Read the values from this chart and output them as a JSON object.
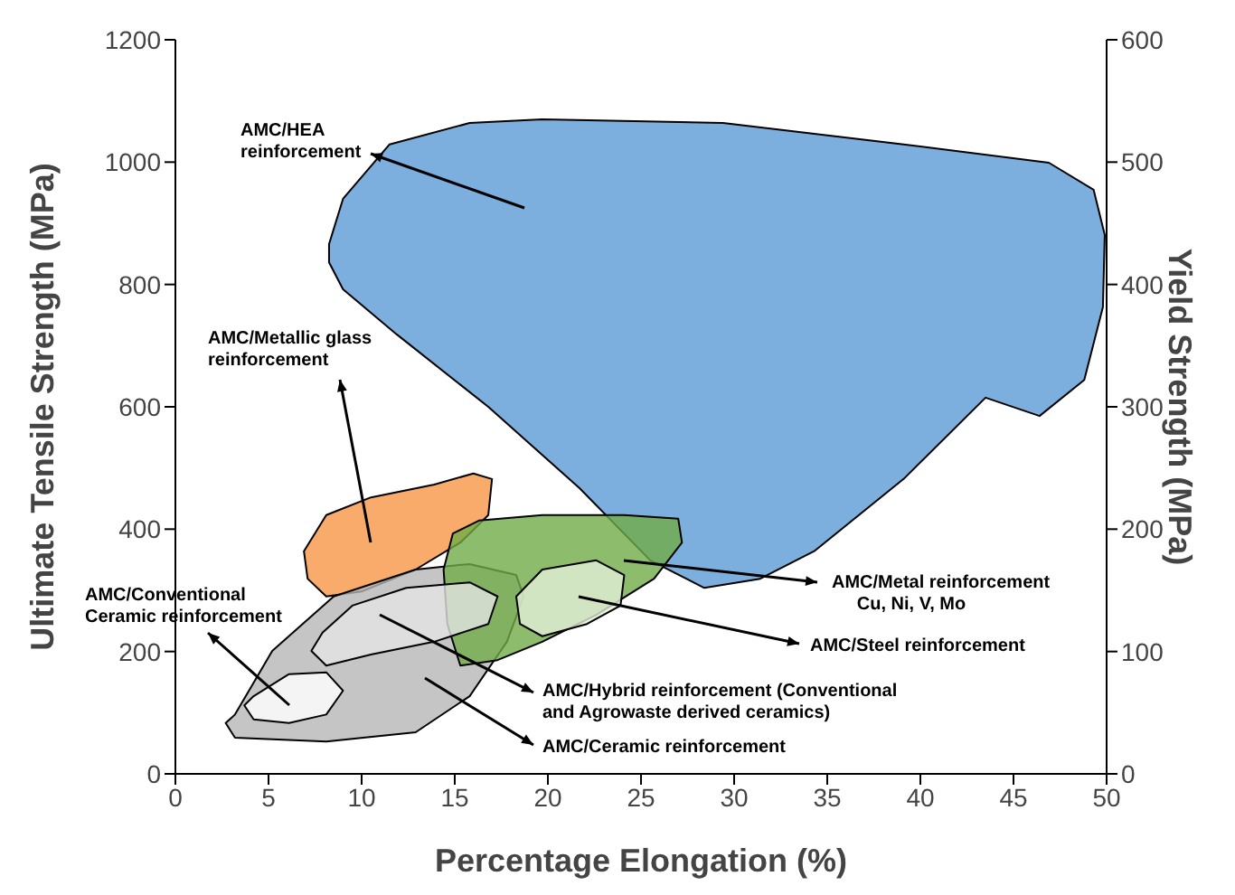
{
  "chart_data": {
    "type": "area",
    "xlabel": "Percentage Elongation (%)",
    "ylabel": "Ultimate Tensile Strength (MPa)",
    "y2label": "Yield Strength (MPa)",
    "xlim": [
      0,
      50
    ],
    "xticks": [
      0,
      5,
      10,
      15,
      20,
      25,
      30,
      35,
      40,
      45,
      50
    ],
    "ylim": [
      0,
      1200
    ],
    "yticks": [
      0,
      200,
      400,
      600,
      800,
      1000,
      1200
    ],
    "y2lim": [
      0,
      600
    ],
    "y2ticks": [
      0,
      100,
      200,
      300,
      400,
      500,
      600
    ],
    "series": [
      {
        "color": "#5b9bd5",
        "x": [
          8.25,
          9.0,
          11.5,
          15.8,
          19.7,
          29.4,
          39.1,
          46.9,
          49.3,
          49.9,
          49.8,
          48.8,
          46.4,
          43.5,
          39.1,
          34.3,
          31.4,
          28.4,
          25.5,
          21.7,
          16.8,
          11.9,
          9.0,
          8.25
        ],
        "values": [
          866,
          940,
          1029,
          1064,
          1070,
          1064,
          1029,
          999,
          955,
          881,
          763,
          644,
          585,
          615,
          482,
          364,
          319,
          304,
          349,
          467,
          600,
          718,
          792,
          836
        ]
      },
      {
        "color": "#f79646",
        "x": [
          6.9,
          8.1,
          10.5,
          13.9,
          16.0,
          17.0,
          16.8,
          15.3,
          12.9,
          10.0,
          8.1,
          7.1
        ],
        "values": [
          364,
          423,
          452,
          473,
          491,
          482,
          423,
          378,
          334,
          298,
          290,
          319
        ]
      },
      {
        "color": "#b7b7b7",
        "x": [
          3.2,
          5.2,
          8.5,
          12.9,
          15.8,
          18.3,
          18.7,
          17.8,
          15.8,
          12.9,
          8.1,
          3.2,
          2.7
        ],
        "values": [
          97,
          201,
          290,
          334,
          343,
          325,
          290,
          216,
          127,
          68,
          53,
          59,
          83
        ]
      },
      {
        "color": "#70ad47",
        "x": [
          14.9,
          16.3,
          19.7,
          24.1,
          27.0,
          27.2,
          25.7,
          22.6,
          19.7,
          17.3,
          15.3,
          14.6,
          14.4
        ],
        "values": [
          393,
          414,
          423,
          423,
          417,
          378,
          319,
          260,
          216,
          186,
          177,
          245,
          334
        ]
      },
      {
        "color": "#e2efd9",
        "x": [
          18.3,
          19.7,
          22.6,
          24.1,
          23.9,
          22.1,
          19.7,
          18.5
        ],
        "values": [
          290,
          334,
          349,
          325,
          275,
          245,
          225,
          245
        ]
      },
      {
        "color": "#e3e3e3",
        "x": [
          7.9,
          9.5,
          12.4,
          15.8,
          17.3,
          16.8,
          13.9,
          10.5,
          8.1,
          7.3
        ],
        "values": [
          231,
          275,
          304,
          313,
          290,
          245,
          216,
          195,
          177,
          201
        ]
      },
      {
        "color": "#ffffff",
        "x": [
          4.2,
          6.1,
          8.1,
          9.0,
          8.1,
          6.1,
          4.2,
          3.7
        ],
        "values": [
          127,
          163,
          166,
          136,
          97,
          83,
          89,
          112
        ]
      }
    ],
    "annotations": [
      "AMC/HEA\nreinforcement",
      "AMC/Metallic glass\nreinforcement",
      "AMC/Conventional\nCeramic reinforcement",
      "AMC/Metal reinforcement\n     Cu, Ni, V, Mo",
      "AMC/Steel reinforcement",
      "AMC/Hybrid reinforcement (Conventional\nand Agrowaste derived ceramics)",
      "AMC/Ceramic reinforcement"
    ]
  }
}
